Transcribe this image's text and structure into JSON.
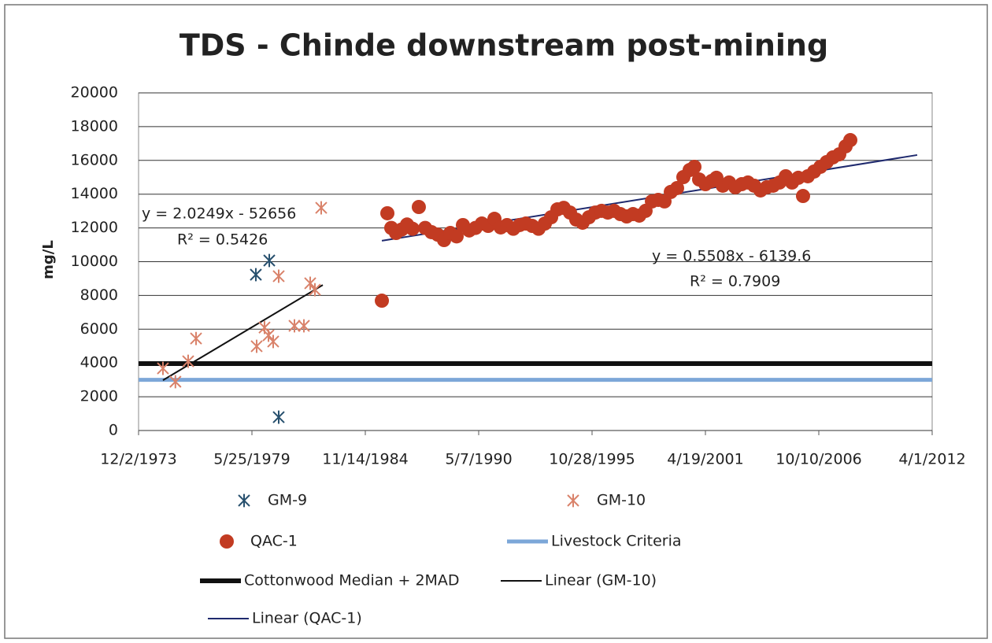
{
  "chart_data": {
    "type": "scatter",
    "title": "TDS - Chinde downstream post-mining",
    "y_label": "mg/L",
    "xlim": [
      27000,
      41000
    ],
    "xticks": [
      {
        "value": 27000,
        "label": "12/2/1973"
      },
      {
        "value": 29000,
        "label": "5/25/1979"
      },
      {
        "value": 31000,
        "label": "11/14/1984"
      },
      {
        "value": 33000,
        "label": "5/7/1990"
      },
      {
        "value": 35000,
        "label": "10/28/1995"
      },
      {
        "value": 37000,
        "label": "4/19/2001"
      },
      {
        "value": 39000,
        "label": "10/10/2006"
      },
      {
        "value": 41000,
        "label": "4/1/2012"
      }
    ],
    "ylim": [
      0,
      20000
    ],
    "yticks": [
      0,
      2000,
      4000,
      6000,
      8000,
      10000,
      12000,
      14000,
      16000,
      18000,
      20000
    ],
    "grid": true,
    "legend": "bottom",
    "annotations": [
      "y = 2.0249x - 52656",
      "R² = 0.5426",
      "y = 0.5508x - 6139.6",
      "R² = 0.7909"
    ],
    "series": [
      {
        "name": "GM-9",
        "kind": "points",
        "marker": "star",
        "color": "#27506e",
        "x": [
          29069,
          29306,
          29472
        ],
        "values": [
          9230,
          10070,
          790
        ]
      },
      {
        "name": "GM-10",
        "kind": "points",
        "marker": "star",
        "color": "#d9826a",
        "x": [
          27430,
          27650,
          27875,
          28014,
          29083,
          29222,
          29292,
          29375,
          29472,
          29750,
          29917,
          30028,
          30111,
          30222
        ],
        "values": [
          3680,
          2890,
          4100,
          5450,
          4990,
          6100,
          5640,
          5270,
          9140,
          6200,
          6200,
          8720,
          8340,
          13190
        ]
      },
      {
        "name": "QAC-1",
        "kind": "points",
        "marker": "circle",
        "color": "#c23b22",
        "x": [
          31292,
          31389,
          31458,
          31542,
          31639,
          31736,
          31833,
          31944,
          32056,
          32167,
          32278,
          32389,
          32500,
          32611,
          32722,
          32833,
          32944,
          33056,
          33167,
          33278,
          33389,
          33500,
          33611,
          33722,
          33833,
          33944,
          34056,
          34167,
          34278,
          34389,
          34500,
          34611,
          34722,
          34833,
          34944,
          35056,
          35167,
          35278,
          35389,
          35500,
          35611,
          35722,
          35833,
          35944,
          36056,
          36167,
          36278,
          36389,
          36500,
          36611,
          36722,
          36806,
          36889,
          37000,
          37111,
          37194,
          37306,
          37417,
          37528,
          37639,
          37750,
          37861,
          37972,
          38083,
          38194,
          38306,
          38417,
          38528,
          38639,
          38722,
          38806,
          38917,
          39028,
          39139,
          39250,
          39361,
          39472,
          39556
        ],
        "values": [
          7690,
          12870,
          12000,
          11700,
          11900,
          12200,
          11950,
          13240,
          12000,
          11750,
          11600,
          11280,
          11700,
          11500,
          12170,
          11850,
          12000,
          12260,
          12120,
          12540,
          12030,
          12170,
          11950,
          12170,
          12260,
          12120,
          11950,
          12260,
          12630,
          13100,
          13190,
          12910,
          12490,
          12310,
          12630,
          12910,
          13010,
          12910,
          13010,
          12820,
          12680,
          12820,
          12730,
          13010,
          13570,
          13660,
          13570,
          14130,
          14360,
          15010,
          15430,
          15620,
          14870,
          14590,
          14780,
          14970,
          14500,
          14690,
          14410,
          14590,
          14690,
          14500,
          14220,
          14410,
          14500,
          14690,
          15060,
          14690,
          14970,
          13890,
          15060,
          15340,
          15620,
          15900,
          16180,
          16360,
          16830,
          17200
        ]
      },
      {
        "name": "Livestock Criteria",
        "kind": "hline",
        "color": "#7ca7d8",
        "width": 5,
        "values": [
          3000
        ]
      },
      {
        "name": "Cottonwood Median + 2MAD",
        "kind": "hline",
        "color": "#111111",
        "width": 6,
        "values": [
          3960
        ]
      },
      {
        "name": "Linear (GM-10)",
        "kind": "trend",
        "color": "#111111",
        "width": 2,
        "x": [
          27430,
          30250
        ],
        "values": [
          2980,
          8620
        ]
      },
      {
        "name": "Linear (QAC-1)",
        "kind": "trend",
        "color": "#1f2a6e",
        "width": 2,
        "x": [
          31292,
          40736
        ],
        "values": [
          11240,
          16320
        ]
      }
    ]
  }
}
